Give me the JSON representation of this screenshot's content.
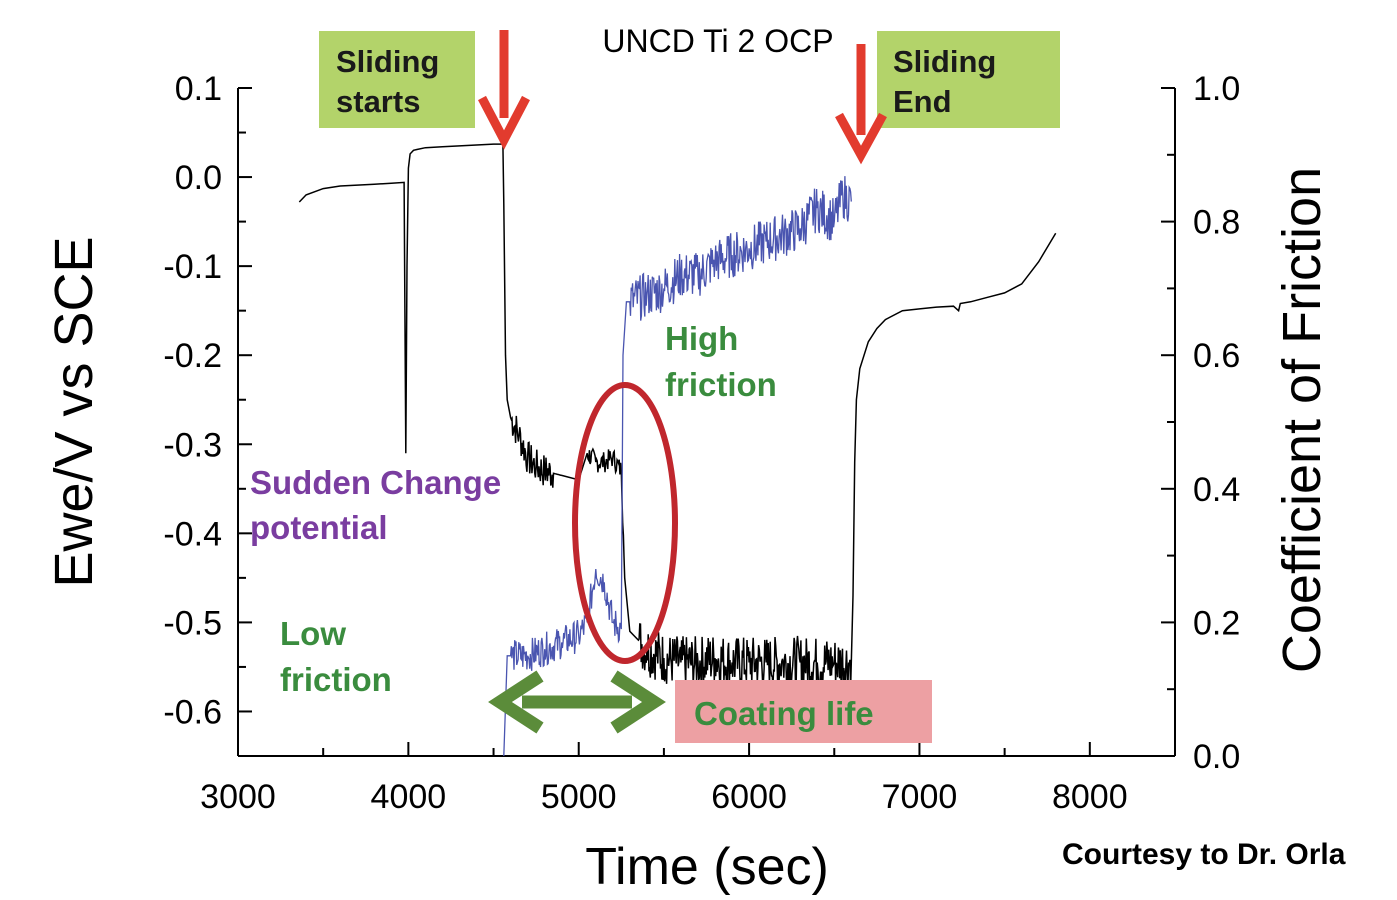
{
  "chart_data": {
    "type": "line",
    "title": "UNCD Ti 2 OCP",
    "xlabel": "Time (sec)",
    "ylabel_left": "Ewe/V vs SCE",
    "ylabel_right": "Coefficient of Friction",
    "xlim": [
      3000,
      8500
    ],
    "ylim_left": [
      -0.65,
      0.1
    ],
    "ylim_right": [
      0.0,
      1.0
    ],
    "x_ticks": [
      "3000",
      "4000",
      "5000",
      "6000",
      "7000",
      "8000"
    ],
    "y_left_ticks": [
      "0.1",
      "0.0",
      "-0.1",
      "-0.2",
      "-0.3",
      "-0.4",
      "-0.5",
      "-0.6"
    ],
    "y_right_ticks": [
      "1.0",
      "0.8",
      "0.6",
      "0.4",
      "0.2",
      "0.0"
    ],
    "grid": false,
    "series": [
      {
        "axis": "left",
        "color": "#000000",
        "x": [
          3360,
          3400,
          3500,
          3600,
          3700,
          3800,
          3900,
          3975,
          3985,
          3992,
          4000,
          4010,
          4030,
          4050,
          4100,
          4200,
          4300,
          4400,
          4500,
          4555,
          4560,
          4570,
          4580,
          4600,
          4650,
          4700,
          4750,
          4800,
          4900,
          5000,
          5050,
          5100,
          5150,
          5200,
          5250,
          5270,
          5300,
          5350,
          5400,
          5500,
          5600,
          5700,
          5800,
          5900,
          6000,
          6100,
          6200,
          6300,
          6400,
          6500,
          6600,
          6610,
          6620,
          6630,
          6650,
          6700,
          6750,
          6800,
          6900,
          7000,
          7100,
          7200,
          7230,
          7240,
          7300,
          7400,
          7500,
          7600,
          7700,
          7800
        ],
        "y": [
          -0.028,
          -0.02,
          -0.013,
          -0.01,
          -0.009,
          -0.008,
          -0.007,
          -0.006,
          -0.31,
          -0.1,
          0.01,
          0.026,
          0.03,
          0.031,
          0.033,
          0.034,
          0.035,
          0.036,
          0.037,
          0.037,
          -0.03,
          -0.2,
          -0.25,
          -0.27,
          -0.29,
          -0.315,
          -0.325,
          -0.33,
          -0.335,
          -0.34,
          -0.31,
          -0.32,
          -0.32,
          -0.315,
          -0.33,
          -0.45,
          -0.51,
          -0.52,
          -0.53,
          -0.54,
          -0.545,
          -0.545,
          -0.54,
          -0.545,
          -0.545,
          -0.545,
          -0.545,
          -0.545,
          -0.545,
          -0.545,
          -0.545,
          -0.47,
          -0.32,
          -0.25,
          -0.215,
          -0.185,
          -0.17,
          -0.16,
          -0.15,
          -0.148,
          -0.146,
          -0.145,
          -0.15,
          -0.142,
          -0.14,
          -0.135,
          -0.13,
          -0.12,
          -0.095,
          -0.063
        ]
      },
      {
        "axis": "right",
        "color": "#4a55b0",
        "x": [
          4560,
          4580,
          4600,
          4700,
          4800,
          4900,
          5000,
          5050,
          5100,
          5150,
          5200,
          5250,
          5260,
          5280,
          5300,
          5400,
          5500,
          5600,
          5700,
          5800,
          5900,
          6000,
          6100,
          6200,
          6300,
          6400,
          6500,
          6550,
          6600
        ],
        "y": [
          0.0,
          0.15,
          0.15,
          0.15,
          0.16,
          0.17,
          0.18,
          0.2,
          0.28,
          0.26,
          0.2,
          0.19,
          0.6,
          0.68,
          0.68,
          0.69,
          0.7,
          0.72,
          0.72,
          0.74,
          0.75,
          0.76,
          0.77,
          0.78,
          0.79,
          0.82,
          0.8,
          0.84,
          0.83
        ]
      }
    ],
    "annotations": {
      "sliding_starts": "Sliding\nstarts",
      "sliding_end": "Sliding\nEnd",
      "high_friction": "High\nfriction",
      "sudden_change": "Sudden Change\npotential",
      "low_friction": "Low\nfriction",
      "coating_life": "Coating life",
      "courtesy": "Courtesy to Dr. Orla"
    },
    "colors": {
      "arrow_red": "#e23b2e",
      "ellipse_red": "#c0272d",
      "green_box": "#b3d36a",
      "pink_box": "#eda0a3",
      "green_text": "#3a8c3e",
      "purple_text": "#7a3da0",
      "double_arrow": "#5b8c3a"
    }
  }
}
